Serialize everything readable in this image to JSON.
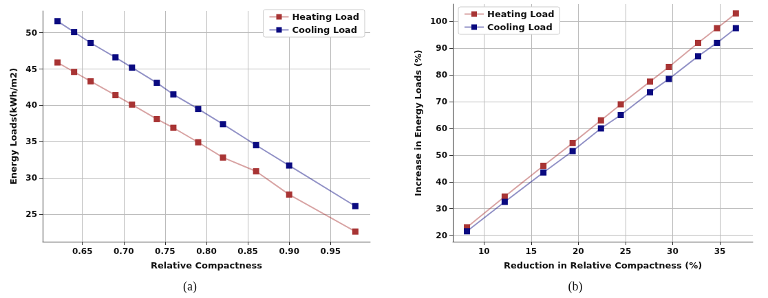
{
  "chart_data": [
    {
      "type": "line",
      "xlabel": "Relative Compactness",
      "ylabel": "Energy Loads(kWh/m2)",
      "annotations": [
        "(a)"
      ],
      "x": [
        0.62,
        0.64,
        0.66,
        0.69,
        0.71,
        0.74,
        0.76,
        0.79,
        0.82,
        0.86,
        0.9,
        0.98
      ],
      "series": [
        {
          "name": "Heating Load",
          "color": "#a83434",
          "values": [
            45.9,
            44.6,
            43.3,
            41.4,
            40.1,
            38.1,
            36.9,
            34.9,
            32.8,
            30.9,
            27.7,
            22.6
          ]
        },
        {
          "name": "Cooling Load",
          "color": "#0a0a80",
          "values": [
            51.6,
            50.1,
            48.6,
            46.6,
            45.2,
            43.1,
            41.5,
            39.5,
            37.4,
            34.5,
            31.7,
            26.1
          ]
        }
      ],
      "xlim": [
        0.602,
        0.998
      ],
      "xticks": [
        {
          "value": 0.65,
          "label": "0.65"
        },
        {
          "value": 0.7,
          "label": "0.70"
        },
        {
          "value": 0.75,
          "label": "0.75"
        },
        {
          "value": 0.8,
          "label": "0.80"
        },
        {
          "value": 0.85,
          "label": "0.85"
        },
        {
          "value": 0.9,
          "label": "0.90"
        },
        {
          "value": 0.95,
          "label": "0.95"
        }
      ],
      "ylim": [
        21.2,
        53
      ],
      "yticks": [
        25,
        30,
        35,
        40,
        45,
        50
      ],
      "grid": true,
      "legend": "top right",
      "marker": "square",
      "line_style": "solid"
    },
    {
      "type": "line",
      "xlabel": "Reduction in Relative Compactness (%)",
      "ylabel": "Increase in Energy Loads (%)",
      "annotations": [
        "(b)"
      ],
      "x": [
        8.2,
        12.2,
        16.3,
        19.4,
        22.4,
        24.5,
        27.6,
        29.6,
        32.7,
        34.7,
        36.7
      ],
      "series": [
        {
          "name": "Heating Load",
          "color": "#a83434",
          "values": [
            23,
            34.5,
            46,
            54.5,
            63,
            69,
            77.5,
            83,
            92,
            97.5,
            103
          ]
        },
        {
          "name": "Cooling Load",
          "color": "#0a0a80",
          "values": [
            21.5,
            32.5,
            43.5,
            51.5,
            60,
            65,
            73.5,
            78.5,
            87,
            92,
            97.5
          ]
        }
      ],
      "xlim": [
        6.7,
        38.5
      ],
      "xticks": [
        10,
        15,
        20,
        25,
        30,
        35
      ],
      "ylim": [
        17.6,
        106.5
      ],
      "yticks": [
        20,
        30,
        40,
        50,
        60,
        70,
        80,
        90,
        100
      ],
      "grid": true,
      "legend": "top left",
      "marker": "square",
      "line_style": "solid"
    }
  ]
}
